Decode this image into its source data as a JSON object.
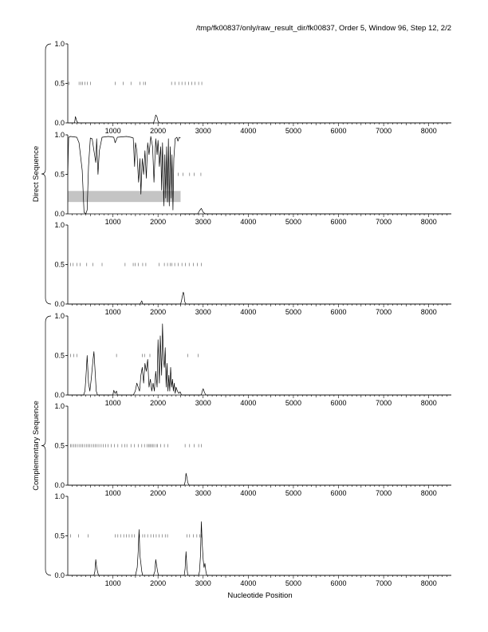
{
  "header": "/tmp/fk00837/only/raw_result_dir/fk00837, Order 5, Window 96, Step 12, 2/2",
  "groups": [
    {
      "label": "Direct Sequence",
      "panels": [
        0,
        1,
        2
      ]
    },
    {
      "label": "Complementary Sequence",
      "panels": [
        3,
        4,
        5
      ]
    }
  ],
  "chart_data": {
    "type": "line",
    "title": "",
    "xlabel": "Nucleotide Position",
    "ylabel": "",
    "xlim": [
      0,
      8500
    ],
    "ylim": [
      0,
      1
    ],
    "x_ticks": [
      1000,
      2000,
      3000,
      4000,
      5000,
      6000,
      7000,
      8000
    ],
    "x_tick_labels": [
      "1000",
      "2000",
      "3000",
      "4000",
      "5000",
      "6000",
      "7000",
      "8000"
    ],
    "y_ticks": [
      0,
      0.5,
      1
    ],
    "y_tick_labels": [
      "0.0",
      "0.5",
      "1.0"
    ],
    "grid": false,
    "legend": "none",
    "panels": [
      {
        "id": "direct-frame-1",
        "ticks_at_half": [
          30,
          250,
          290,
          330,
          380,
          430,
          500,
          1050,
          1230,
          1400,
          1600,
          1680,
          1720,
          2300,
          2380,
          2460,
          2530,
          2600,
          2680,
          2750,
          2820,
          2900,
          2970
        ],
        "series": [
          {
            "x": [
              0,
              150,
              170,
              200,
              230,
              1900,
              1930,
              1950,
              1975,
              2000,
              2030,
              3050,
              8500
            ],
            "y": [
              0,
              0,
              0.08,
              0.02,
              0,
              0,
              0.05,
              0.1,
              0.08,
              0.02,
              0,
              0,
              0
            ]
          }
        ]
      },
      {
        "id": "direct-frame-2",
        "highlight_band": {
          "x": [
            0,
            2500
          ],
          "y": [
            0.15,
            0.29
          ]
        },
        "ticks_at_half": [
          2450,
          2550,
          2700,
          2800,
          2950
        ],
        "series": [
          {
            "x": [
              0,
              20,
              60,
              200,
              250,
              320,
              360,
              400,
              430,
              460,
              500,
              540,
              580,
              620,
              640,
              670,
              700,
              760,
              900,
              1020,
              1050,
              1100,
              1300,
              1400,
              1450,
              1480,
              1500,
              1530,
              1570,
              1600,
              1620,
              1650,
              1680,
              1710,
              1740,
              1770,
              1800,
              1840,
              1880,
              1910,
              1950,
              1980,
              2000,
              2030,
              2060,
              2080,
              2100,
              2130,
              2150,
              2170,
              2190,
              2210,
              2230,
              2250,
              2270,
              2290,
              2310,
              2330,
              2350,
              2380,
              2420,
              2440,
              2470,
              2500
            ],
            "y": [
              0.5,
              0.97,
              0.98,
              0.97,
              0.9,
              0.55,
              0.02,
              0.0,
              0.05,
              0.6,
              0.96,
              0.95,
              0.8,
              0.65,
              0.95,
              0.5,
              0.8,
              0.97,
              0.98,
              0.97,
              0.9,
              0.97,
              0.98,
              0.97,
              0.96,
              0.6,
              0.9,
              0.8,
              0.4,
              0.7,
              0.25,
              0.7,
              0.5,
              0.8,
              0.45,
              0.9,
              0.75,
              0.98,
              0.85,
              0.4,
              0.95,
              0.75,
              0.93,
              0.6,
              0.85,
              0.3,
              0.9,
              0.1,
              0.75,
              0.2,
              0.85,
              0.15,
              0.95,
              0.1,
              0.85,
              0.2,
              0.75,
              0.05,
              0.7,
              0.95,
              0.97,
              0.92,
              0.97,
              0.96
            ]
          },
          {
            "x": [
              2500,
              2700,
              2880,
              2920,
              2960,
              3000,
              3050,
              8500
            ],
            "y": [
              0,
              0,
              0,
              0.04,
              0.07,
              0.02,
              0,
              0
            ]
          }
        ]
      },
      {
        "id": "direct-frame-3",
        "ticks_at_half": [
          60,
          120,
          200,
          270,
          420,
          560,
          760,
          1270,
          1450,
          1490,
          1560,
          1660,
          1730,
          2020,
          2140,
          2210,
          2270,
          2310,
          2370,
          2450,
          2530,
          2610,
          2690,
          2780,
          2870,
          2960
        ],
        "series": [
          {
            "x": [
              0,
              1600,
              1620,
              1640,
              1660,
              2500,
              2520,
              2540,
              2560,
              2575,
              2590,
              2620,
              8500
            ],
            "y": [
              0,
              0,
              0.02,
              0.04,
              0,
              0,
              0.04,
              0.1,
              0.15,
              0.12,
              0.03,
              0,
              0
            ]
          }
        ]
      },
      {
        "id": "complementary-frame-1",
        "ticks_at_half": [
          60,
          130,
          200,
          1080,
          1650,
          1700,
          1820,
          2660,
          2890
        ],
        "series": [
          {
            "x": [
              0,
              350,
              380,
              400,
              430,
              460,
              490,
              520,
              560,
              580,
              600,
              630,
              660,
              1000,
              1020,
              1050,
              1080,
              1100,
              1450,
              1480,
              1500,
              1530,
              1560,
              1590,
              1620,
              1650,
              1680,
              1710,
              1740,
              1770,
              1800,
              1830,
              1860,
              1890,
              1920,
              1950,
              1980,
              2000,
              2030,
              2050,
              2080,
              2100,
              2120,
              2140,
              2160,
              2180,
              2200,
              2220,
              2240,
              2260,
              2280,
              2300,
              2320,
              2340,
              2360,
              2380,
              2400,
              2430,
              2460,
              2490,
              2520,
              2600,
              2960,
              2980,
              3000,
              3030,
              3060,
              8500
            ],
            "y": [
              0,
              0,
              0.05,
              0.2,
              0.5,
              0.15,
              0.05,
              0.2,
              0.45,
              0.55,
              0.35,
              0.05,
              0,
              0,
              0.06,
              0.02,
              0.05,
              0,
              0,
              0.03,
              0.06,
              0.15,
              0.1,
              0.05,
              0.25,
              0.35,
              0.15,
              0.4,
              0.3,
              0.45,
              0.1,
              0.2,
              0.05,
              0.15,
              0.05,
              0.3,
              0.1,
              0.7,
              0.15,
              0.75,
              0.25,
              0.9,
              0.45,
              0.35,
              0.6,
              0.1,
              0.4,
              0.05,
              0.25,
              0.05,
              0.35,
              0.1,
              0.2,
              0.05,
              0.15,
              0.02,
              0.1,
              0.05,
              0.02,
              0.04,
              0,
              0,
              0,
              0.05,
              0.08,
              0.03,
              0,
              0
            ]
          }
        ]
      },
      {
        "id": "complementary-frame-2",
        "ticks_at_half": [
          60,
          90,
          130,
          170,
          210,
          250,
          290,
          330,
          370,
          410,
          450,
          490,
          530,
          570,
          610,
          650,
          690,
          740,
          790,
          840,
          890,
          960,
          1030,
          1110,
          1200,
          1260,
          1310,
          1400,
          1480,
          1560,
          1640,
          1700,
          1760,
          1790,
          1820,
          1850,
          1880,
          1910,
          1960,
          1990,
          2060,
          2140,
          2220,
          2600,
          2700,
          2800,
          2900,
          2960
        ],
        "series": [
          {
            "x": [
              0,
              2580,
              2600,
              2620,
              2640,
              2660,
              2690,
              8500
            ],
            "y": [
              0,
              0,
              0.04,
              0.15,
              0.1,
              0.03,
              0,
              0
            ]
          }
        ]
      },
      {
        "id": "complementary-frame-3",
        "ticks_at_half": [
          60,
          240,
          450,
          1050,
          1110,
          1170,
          1240,
          1300,
          1360,
          1420,
          1480,
          1590,
          1660,
          1710,
          1770,
          1840,
          1900,
          1960,
          2020,
          2090,
          2160,
          2210,
          2640,
          2700,
          2780,
          2860,
          2920,
          2960
        ],
        "series": [
          {
            "x": [
              0,
              580,
              600,
              620,
              640,
              660,
              680,
              1500,
              1520,
              1540,
              1560,
              1580,
              1600,
              1620,
              1640,
              1660,
              1900,
              1930,
              1950,
              1970,
              1990,
              2010,
              2580,
              2600,
              2620,
              2640,
              2660,
              2900,
              2920,
              2940,
              2960,
              2980,
              3000,
              3020,
              3040,
              3060,
              3080,
              8500
            ],
            "y": [
              0,
              0,
              0.05,
              0.2,
              0.1,
              0.05,
              0,
              0,
              0.05,
              0.1,
              0.3,
              0.58,
              0.25,
              0.15,
              0.05,
              0,
              0,
              0.05,
              0.2,
              0.12,
              0.05,
              0,
              0,
              0.08,
              0.3,
              0.1,
              0,
              0,
              0.05,
              0.25,
              0.68,
              0.4,
              0.2,
              0.1,
              0.15,
              0.05,
              0,
              0
            ]
          }
        ]
      }
    ]
  }
}
